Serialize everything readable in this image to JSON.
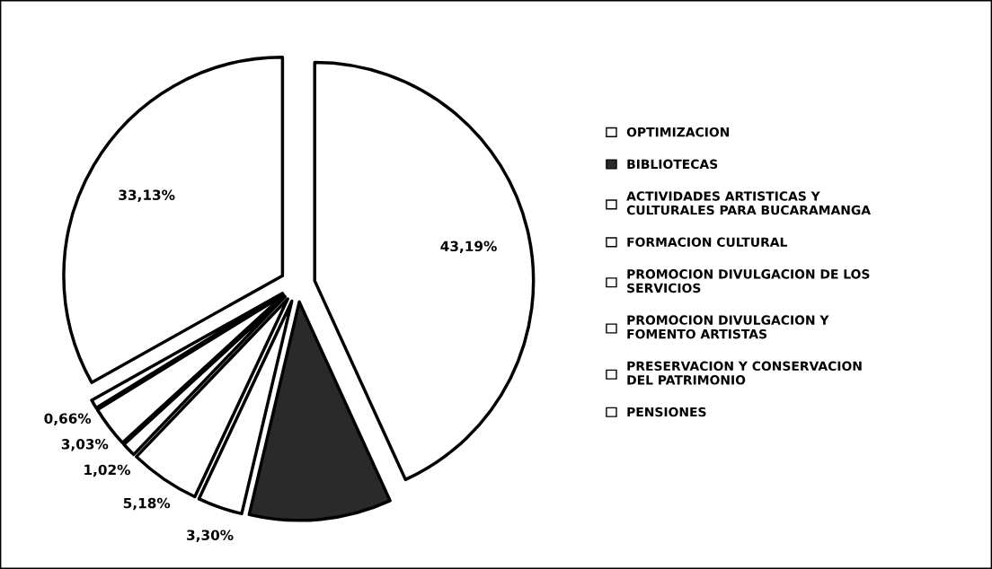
{
  "chart_data": {
    "type": "pie",
    "categories": [
      "OPTIMIZACION",
      "BIBLIOTECAS",
      "ACTIVIDADES ARTISTICAS Y CULTURALES PARA BUCARAMANGA",
      "FORMACION CULTURAL",
      "PROMOCION DIVULGACION DE LOS SERVICIOS",
      "PROMOCION DIVULGACION Y FOMENTO ARTISTAS",
      "PRESERVACION Y CONSERVACION DEL PATRIMONIO",
      "PENSIONES"
    ],
    "values": [
      43.19,
      10.49,
      3.3,
      5.18,
      1.02,
      3.03,
      0.66,
      33.13
    ],
    "value_labels": [
      "43,19%",
      null,
      "3,30%",
      "5,18%",
      "1,02%",
      "3,03%",
      "0,66%",
      "33,13%"
    ],
    "colors": [
      "#ffffff",
      "#2a2a2a",
      "#ffffff",
      "#ffffff",
      "#ffffff",
      "#ffffff",
      "#ffffff",
      "#ffffff"
    ],
    "legend": "right"
  }
}
